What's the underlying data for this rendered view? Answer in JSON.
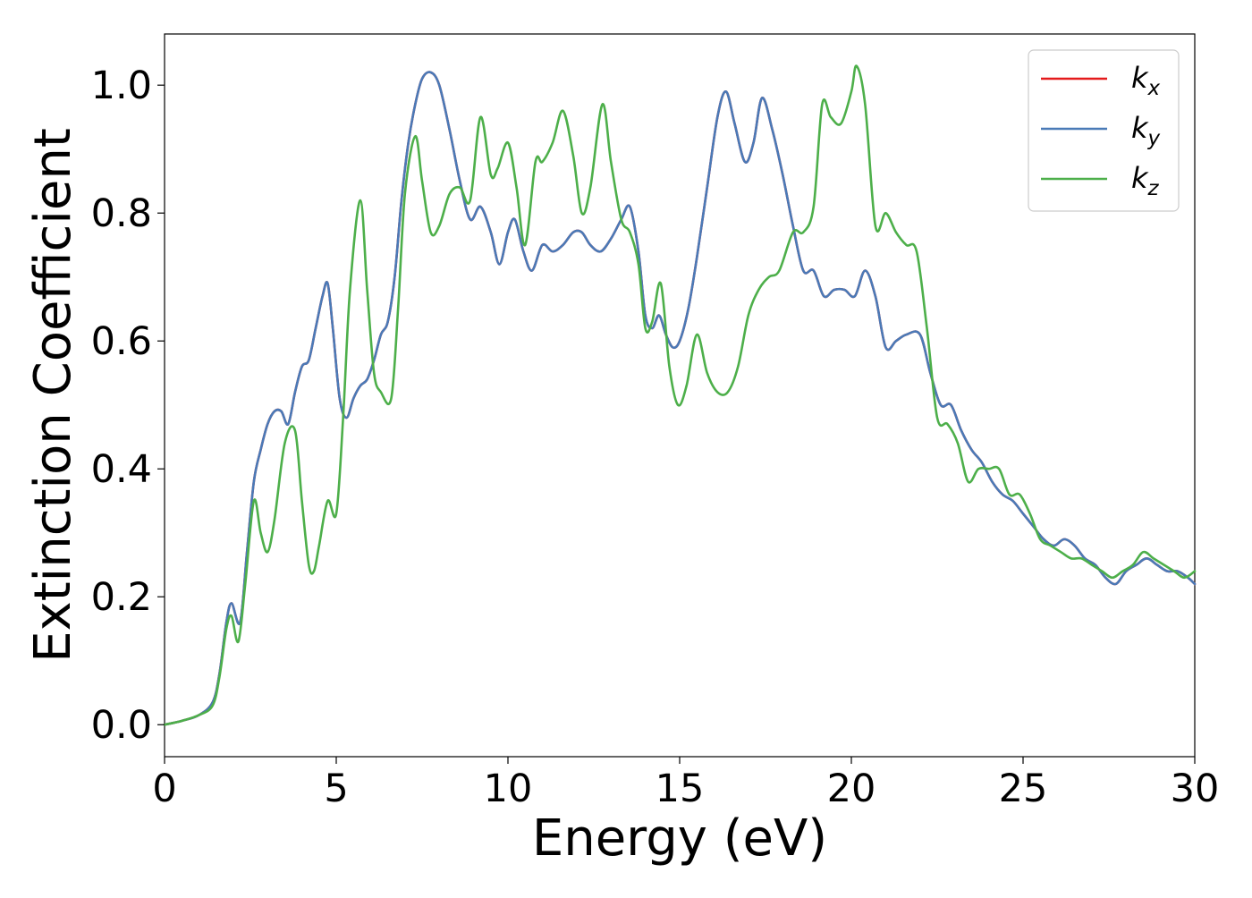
{
  "chart_data": {
    "type": "line",
    "xlabel": "Energy (eV)",
    "ylabel": "Extinction Coefficient",
    "xlim": [
      0,
      30
    ],
    "ylim": [
      -0.05,
      1.08
    ],
    "xticks": [
      0,
      5,
      10,
      15,
      20,
      25,
      30
    ],
    "yticks": [
      0.0,
      0.2,
      0.4,
      0.6,
      0.8,
      1.0
    ],
    "xtick_labels": [
      "0",
      "5",
      "10",
      "15",
      "20",
      "25",
      "30"
    ],
    "ytick_labels": [
      "0.0",
      "0.2",
      "0.4",
      "0.6",
      "0.8",
      "1.0"
    ],
    "grid": false,
    "legend_position": "top-right",
    "series": [
      {
        "name": "k_x",
        "legend_base": "k",
        "legend_sub": "x",
        "color": "#e41a1c",
        "x": [
          0,
          0.5,
          1.0,
          1.4,
          1.6,
          1.8,
          1.95,
          2.2,
          2.4,
          2.6,
          2.8,
          3.0,
          3.2,
          3.4,
          3.6,
          3.8,
          4.0,
          4.2,
          4.4,
          4.6,
          4.75,
          4.9,
          5.1,
          5.3,
          5.5,
          5.7,
          5.9,
          6.1,
          6.3,
          6.5,
          6.7,
          6.9,
          7.1,
          7.3,
          7.5,
          7.75,
          8.0,
          8.3,
          8.6,
          8.9,
          9.2,
          9.5,
          9.75,
          10.0,
          10.2,
          10.45,
          10.7,
          11.0,
          11.3,
          11.6,
          11.9,
          12.15,
          12.4,
          12.7,
          13.0,
          13.3,
          13.55,
          13.8,
          14.0,
          14.2,
          14.4,
          14.6,
          14.8,
          15.0,
          15.25,
          15.5,
          15.8,
          16.1,
          16.35,
          16.6,
          16.9,
          17.15,
          17.4,
          17.7,
          18.0,
          18.3,
          18.6,
          18.9,
          19.2,
          19.5,
          19.8,
          20.1,
          20.4,
          20.7,
          21.0,
          21.3,
          21.6,
          22.0,
          22.3,
          22.6,
          22.9,
          23.2,
          23.5,
          23.8,
          24.1,
          24.4,
          24.7,
          25.0,
          25.3,
          25.6,
          25.9,
          26.2,
          26.5,
          26.8,
          27.1,
          27.4,
          27.7,
          28.0,
          28.3,
          28.6,
          28.9,
          29.2,
          29.5,
          29.8,
          30.0
        ],
        "y": [
          0.0,
          0.006,
          0.015,
          0.035,
          0.08,
          0.16,
          0.19,
          0.16,
          0.27,
          0.38,
          0.43,
          0.47,
          0.49,
          0.49,
          0.47,
          0.52,
          0.56,
          0.57,
          0.62,
          0.67,
          0.69,
          0.62,
          0.51,
          0.48,
          0.51,
          0.53,
          0.54,
          0.57,
          0.61,
          0.63,
          0.7,
          0.82,
          0.91,
          0.97,
          1.01,
          1.02,
          1.0,
          0.93,
          0.85,
          0.79,
          0.81,
          0.77,
          0.72,
          0.77,
          0.79,
          0.74,
          0.71,
          0.75,
          0.74,
          0.75,
          0.77,
          0.77,
          0.75,
          0.74,
          0.76,
          0.79,
          0.81,
          0.74,
          0.64,
          0.62,
          0.64,
          0.61,
          0.59,
          0.6,
          0.65,
          0.73,
          0.84,
          0.95,
          0.99,
          0.94,
          0.88,
          0.91,
          0.98,
          0.93,
          0.86,
          0.78,
          0.71,
          0.71,
          0.67,
          0.68,
          0.68,
          0.67,
          0.71,
          0.67,
          0.59,
          0.6,
          0.61,
          0.61,
          0.55,
          0.5,
          0.5,
          0.46,
          0.43,
          0.41,
          0.38,
          0.36,
          0.35,
          0.33,
          0.31,
          0.29,
          0.28,
          0.29,
          0.28,
          0.26,
          0.25,
          0.23,
          0.22,
          0.24,
          0.25,
          0.26,
          0.25,
          0.24,
          0.24,
          0.23,
          0.22
        ]
      },
      {
        "name": "k_y",
        "legend_base": "k",
        "legend_sub": "y",
        "color": "#4a7ab7",
        "x": [
          0,
          0.5,
          1.0,
          1.4,
          1.6,
          1.8,
          1.95,
          2.2,
          2.4,
          2.6,
          2.8,
          3.0,
          3.2,
          3.4,
          3.6,
          3.8,
          4.0,
          4.2,
          4.4,
          4.6,
          4.75,
          4.9,
          5.1,
          5.3,
          5.5,
          5.7,
          5.9,
          6.1,
          6.3,
          6.5,
          6.7,
          6.9,
          7.1,
          7.3,
          7.5,
          7.75,
          8.0,
          8.3,
          8.6,
          8.9,
          9.2,
          9.5,
          9.75,
          10.0,
          10.2,
          10.45,
          10.7,
          11.0,
          11.3,
          11.6,
          11.9,
          12.15,
          12.4,
          12.7,
          13.0,
          13.3,
          13.55,
          13.8,
          14.0,
          14.2,
          14.4,
          14.6,
          14.8,
          15.0,
          15.25,
          15.5,
          15.8,
          16.1,
          16.35,
          16.6,
          16.9,
          17.15,
          17.4,
          17.7,
          18.0,
          18.3,
          18.6,
          18.9,
          19.2,
          19.5,
          19.8,
          20.1,
          20.4,
          20.7,
          21.0,
          21.3,
          21.6,
          22.0,
          22.3,
          22.6,
          22.9,
          23.2,
          23.5,
          23.8,
          24.1,
          24.4,
          24.7,
          25.0,
          25.3,
          25.6,
          25.9,
          26.2,
          26.5,
          26.8,
          27.1,
          27.4,
          27.7,
          28.0,
          28.3,
          28.6,
          28.9,
          29.2,
          29.5,
          29.8,
          30.0
        ],
        "y": [
          0.0,
          0.006,
          0.015,
          0.035,
          0.08,
          0.16,
          0.19,
          0.16,
          0.27,
          0.38,
          0.43,
          0.47,
          0.49,
          0.49,
          0.47,
          0.52,
          0.56,
          0.57,
          0.62,
          0.67,
          0.69,
          0.62,
          0.51,
          0.48,
          0.51,
          0.53,
          0.54,
          0.57,
          0.61,
          0.63,
          0.7,
          0.82,
          0.91,
          0.97,
          1.01,
          1.02,
          1.0,
          0.93,
          0.85,
          0.79,
          0.81,
          0.77,
          0.72,
          0.77,
          0.79,
          0.74,
          0.71,
          0.75,
          0.74,
          0.75,
          0.77,
          0.77,
          0.75,
          0.74,
          0.76,
          0.79,
          0.81,
          0.74,
          0.64,
          0.62,
          0.64,
          0.61,
          0.59,
          0.6,
          0.65,
          0.73,
          0.84,
          0.95,
          0.99,
          0.94,
          0.88,
          0.91,
          0.98,
          0.93,
          0.86,
          0.78,
          0.71,
          0.71,
          0.67,
          0.68,
          0.68,
          0.67,
          0.71,
          0.67,
          0.59,
          0.6,
          0.61,
          0.61,
          0.55,
          0.5,
          0.5,
          0.46,
          0.43,
          0.41,
          0.38,
          0.36,
          0.35,
          0.33,
          0.31,
          0.29,
          0.28,
          0.29,
          0.28,
          0.26,
          0.25,
          0.23,
          0.22,
          0.24,
          0.25,
          0.26,
          0.25,
          0.24,
          0.24,
          0.23,
          0.22
        ]
      },
      {
        "name": "k_z",
        "legend_base": "k",
        "legend_sub": "z",
        "color": "#4daf4a",
        "x": [
          0,
          0.5,
          1.0,
          1.4,
          1.6,
          1.8,
          1.95,
          2.15,
          2.35,
          2.6,
          2.8,
          3.0,
          3.2,
          3.5,
          3.8,
          4.0,
          4.2,
          4.35,
          4.5,
          4.75,
          5.0,
          5.2,
          5.4,
          5.7,
          5.9,
          6.1,
          6.3,
          6.6,
          6.8,
          7.0,
          7.3,
          7.5,
          7.75,
          8.0,
          8.3,
          8.6,
          8.9,
          9.2,
          9.5,
          9.7,
          10.0,
          10.25,
          10.5,
          10.8,
          11.0,
          11.3,
          11.6,
          11.9,
          12.15,
          12.4,
          12.75,
          13.0,
          13.3,
          13.55,
          13.8,
          14.0,
          14.2,
          14.45,
          14.7,
          14.95,
          15.2,
          15.5,
          15.8,
          16.1,
          16.4,
          16.7,
          17.0,
          17.3,
          17.6,
          17.9,
          18.3,
          18.6,
          18.9,
          19.15,
          19.4,
          19.7,
          20.0,
          20.15,
          20.4,
          20.7,
          21.0,
          21.3,
          21.6,
          21.9,
          22.2,
          22.5,
          22.8,
          23.1,
          23.4,
          23.7,
          24.0,
          24.3,
          24.6,
          24.9,
          25.2,
          25.5,
          25.8,
          26.1,
          26.4,
          26.7,
          27.0,
          27.3,
          27.6,
          27.9,
          28.2,
          28.5,
          28.8,
          29.1,
          29.4,
          29.7,
          30.0
        ],
        "y": [
          0.0,
          0.006,
          0.015,
          0.03,
          0.075,
          0.15,
          0.17,
          0.13,
          0.22,
          0.35,
          0.3,
          0.27,
          0.32,
          0.44,
          0.46,
          0.35,
          0.25,
          0.24,
          0.28,
          0.35,
          0.33,
          0.48,
          0.68,
          0.82,
          0.68,
          0.55,
          0.52,
          0.51,
          0.65,
          0.83,
          0.92,
          0.85,
          0.77,
          0.78,
          0.83,
          0.84,
          0.82,
          0.95,
          0.86,
          0.87,
          0.91,
          0.84,
          0.75,
          0.88,
          0.88,
          0.91,
          0.96,
          0.89,
          0.8,
          0.84,
          0.97,
          0.88,
          0.79,
          0.77,
          0.72,
          0.62,
          0.63,
          0.69,
          0.56,
          0.5,
          0.53,
          0.61,
          0.55,
          0.52,
          0.52,
          0.56,
          0.64,
          0.68,
          0.7,
          0.71,
          0.77,
          0.77,
          0.81,
          0.97,
          0.95,
          0.94,
          0.99,
          1.03,
          0.97,
          0.78,
          0.8,
          0.77,
          0.75,
          0.74,
          0.62,
          0.48,
          0.47,
          0.44,
          0.38,
          0.4,
          0.4,
          0.4,
          0.36,
          0.36,
          0.33,
          0.29,
          0.28,
          0.27,
          0.26,
          0.26,
          0.25,
          0.24,
          0.23,
          0.24,
          0.25,
          0.27,
          0.26,
          0.25,
          0.24,
          0.23,
          0.24
        ]
      }
    ]
  }
}
